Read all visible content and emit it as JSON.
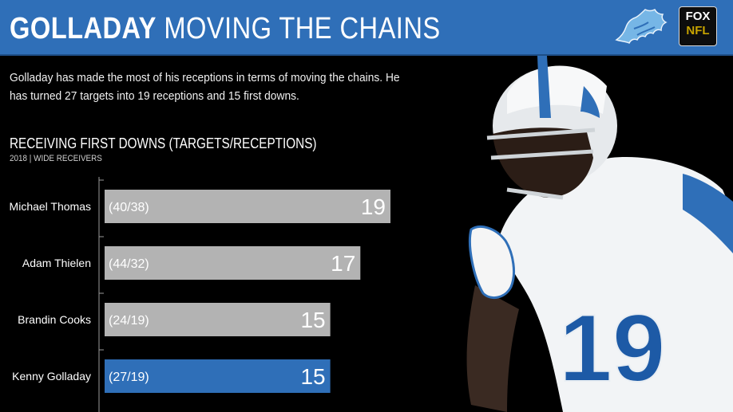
{
  "header": {
    "title_bold": "GOLLADAY",
    "title_rest": "MOVING THE CHAINS",
    "background": "#2f6fb8",
    "logo_badge": {
      "line1": "FOX",
      "line2": "NFL"
    },
    "team_logo": "lions-logo-icon"
  },
  "description": "Golladay has made the most of his receptions in terms of moving the chains. He has turned 27 targets into 19 receptions and 15 first downs.",
  "chart_data": {
    "type": "bar",
    "orientation": "horizontal",
    "title": "RECEIVING FIRST DOWNS (TARGETS/RECEPTIONS)",
    "subtitle": "2018 | WIDE RECEIVERS",
    "categories": [
      "Michael Thomas",
      "Adam Thielen",
      "Brandin Cooks",
      "Kenny Golladay"
    ],
    "values": [
      19,
      17,
      15,
      15
    ],
    "labels": [
      "(40/38)",
      "(44/32)",
      "(24/19)",
      "(27/19)"
    ],
    "colors": [
      "#b3b3b3",
      "#b3b3b3",
      "#b3b3b3",
      "#2f6fb8"
    ],
    "xlim": [
      0,
      19
    ],
    "grid": false
  },
  "image": {
    "subject": "player-photo",
    "jersey_number": "19"
  }
}
